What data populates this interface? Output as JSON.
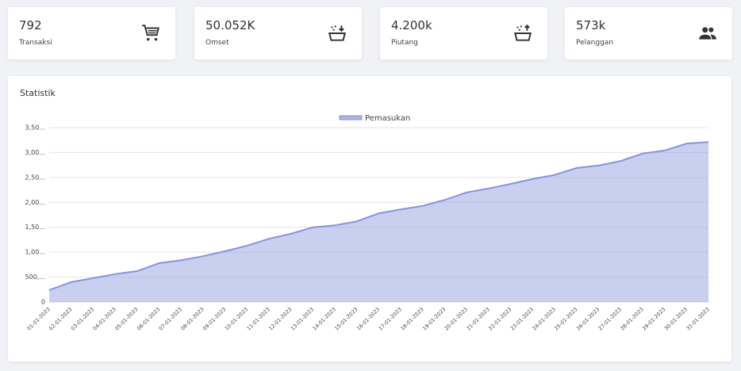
{
  "cards": [
    {
      "value": "792",
      "label": "Transaksi"
    },
    {
      "value": "50.052K",
      "label": "Omset"
    },
    {
      "value": "4.200k",
      "label": "Piutang"
    },
    {
      "value": "573k",
      "label": "Pelanggan"
    }
  ],
  "chart_data": {
    "type": "area",
    "title": "Statistik",
    "categories": [
      "01-01-2023",
      "02-01-2023",
      "03-01-2023",
      "04-01-2023",
      "05-01-2023",
      "06-01-2023",
      "07-01-2023",
      "08-01-2023",
      "09-01-2023",
      "10-01-2023",
      "11-01-2023",
      "12-01-2023",
      "13-01-2023",
      "14-01-2023",
      "15-01-2023",
      "16-01-2023",
      "17-01-2023",
      "18-01-2023",
      "19-01-2023",
      "20-01-2023",
      "21-01-2023",
      "22-01-2023",
      "23-01-2023",
      "24-01-2023",
      "25-01-2023",
      "26-01-2023",
      "27-01-2023",
      "28-01-2023",
      "29-01-2023",
      "30-01-2023",
      "31-01-2023"
    ],
    "series": [
      {
        "name": "Pemasukan",
        "color": "#8794dc",
        "values": [
          240000,
          400000,
          480000,
          560000,
          620000,
          780000,
          840000,
          920000,
          1020000,
          1130000,
          1270000,
          1370000,
          1500000,
          1540000,
          1620000,
          1780000,
          1860000,
          1930000,
          2050000,
          2200000,
          2280000,
          2370000,
          2470000,
          2550000,
          2690000,
          2740000,
          2830000,
          2980000,
          3040000,
          3180000,
          3210000
        ]
      }
    ],
    "ylim": [
      0,
      3500000
    ],
    "yticks": [
      0,
      {
        "value": 500000,
        "label": "500,..."
      },
      {
        "value": 1000000,
        "label": "1,00..."
      },
      {
        "value": 1500000,
        "label": "1,50..."
      },
      {
        "value": 2000000,
        "label": "2,00..."
      },
      {
        "value": 2500000,
        "label": "2,50..."
      },
      {
        "value": 3000000,
        "label": "3,00..."
      },
      {
        "value": 3500000,
        "label": "3,50..."
      }
    ],
    "grid": true,
    "legend": "top"
  }
}
